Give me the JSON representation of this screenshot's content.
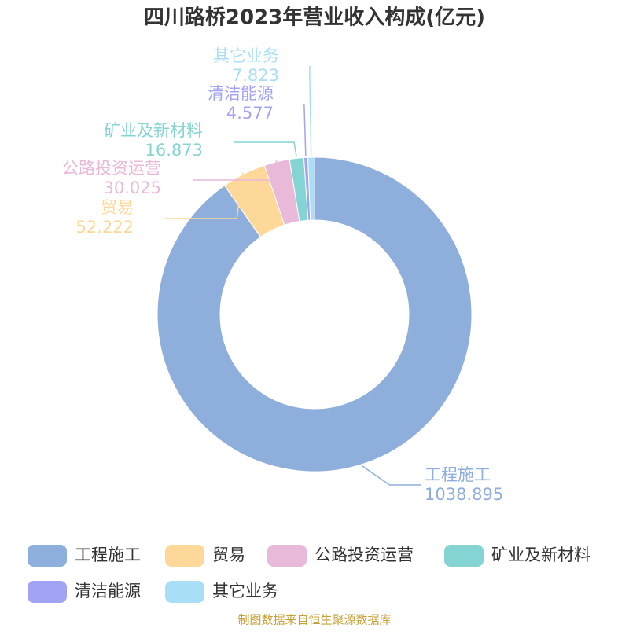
{
  "chart_data": {
    "type": "donut",
    "title": "四川路桥2023年营业收入构成(亿元)",
    "categories": [
      "工程施工",
      "贸易",
      "公路投资运营",
      "矿业及新材料",
      "清洁能源",
      "其它业务"
    ],
    "values": [
      1038.895,
      52.222,
      30.025,
      16.873,
      4.577,
      7.823
    ],
    "colors": [
      "#8eaedb",
      "#fdd898",
      "#e8b9d9",
      "#84d4d4",
      "#a3a3f5",
      "#a9dff6"
    ],
    "source": "制图数据来自恒生聚源数据库"
  }
}
